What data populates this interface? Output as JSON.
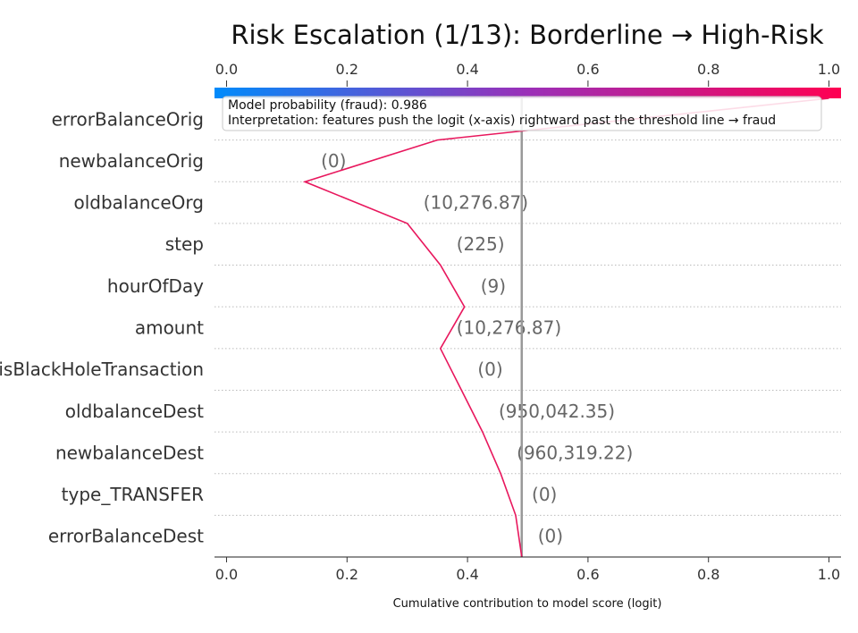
{
  "chart_data": {
    "type": "line",
    "title": "Risk Escalation (1/13): Borderline → High-Risk",
    "xlabel": "Cumulative contribution to model score (logit)",
    "xlim": [
      -0.02,
      1.02
    ],
    "xticks": [
      "0.0",
      "0.2",
      "0.4",
      "0.6",
      "0.8",
      "1.0"
    ],
    "threshold": 0.49,
    "features": [
      {
        "name": "errorBalanceOrig",
        "value": ""
      },
      {
        "name": "newbalanceOrig",
        "value": "(0)"
      },
      {
        "name": "oldbalanceOrg",
        "value": "(10,276.87)"
      },
      {
        "name": "step",
        "value": "(225)"
      },
      {
        "name": "hourOfDay",
        "value": "(9)"
      },
      {
        "name": "amount",
        "value": "(10,276.87)"
      },
      {
        "name": "isBlackHoleTransaction",
        "value": "(0)"
      },
      {
        "name": "oldbalanceDest",
        "value": "(950,042.35)"
      },
      {
        "name": "newbalanceDest",
        "value": "(960,319.22)"
      },
      {
        "name": "type_TRANSFER",
        "value": "(0)"
      },
      {
        "name": "errorBalanceDest",
        "value": "(0)"
      }
    ],
    "path_x": [
      1.0,
      0.35,
      0.13,
      0.3,
      0.355,
      0.395,
      0.355,
      0.39,
      0.425,
      0.455,
      0.48,
      0.49
    ],
    "line_color": "#e8175d",
    "colorbar": {
      "from": "#008bfb",
      "to": "#ff0052"
    },
    "annotation": {
      "line1": "Model probability (fraud): 0.986",
      "line2": "Interpretation: features push the logit (x-axis) rightward past the threshold line → fraud"
    }
  }
}
